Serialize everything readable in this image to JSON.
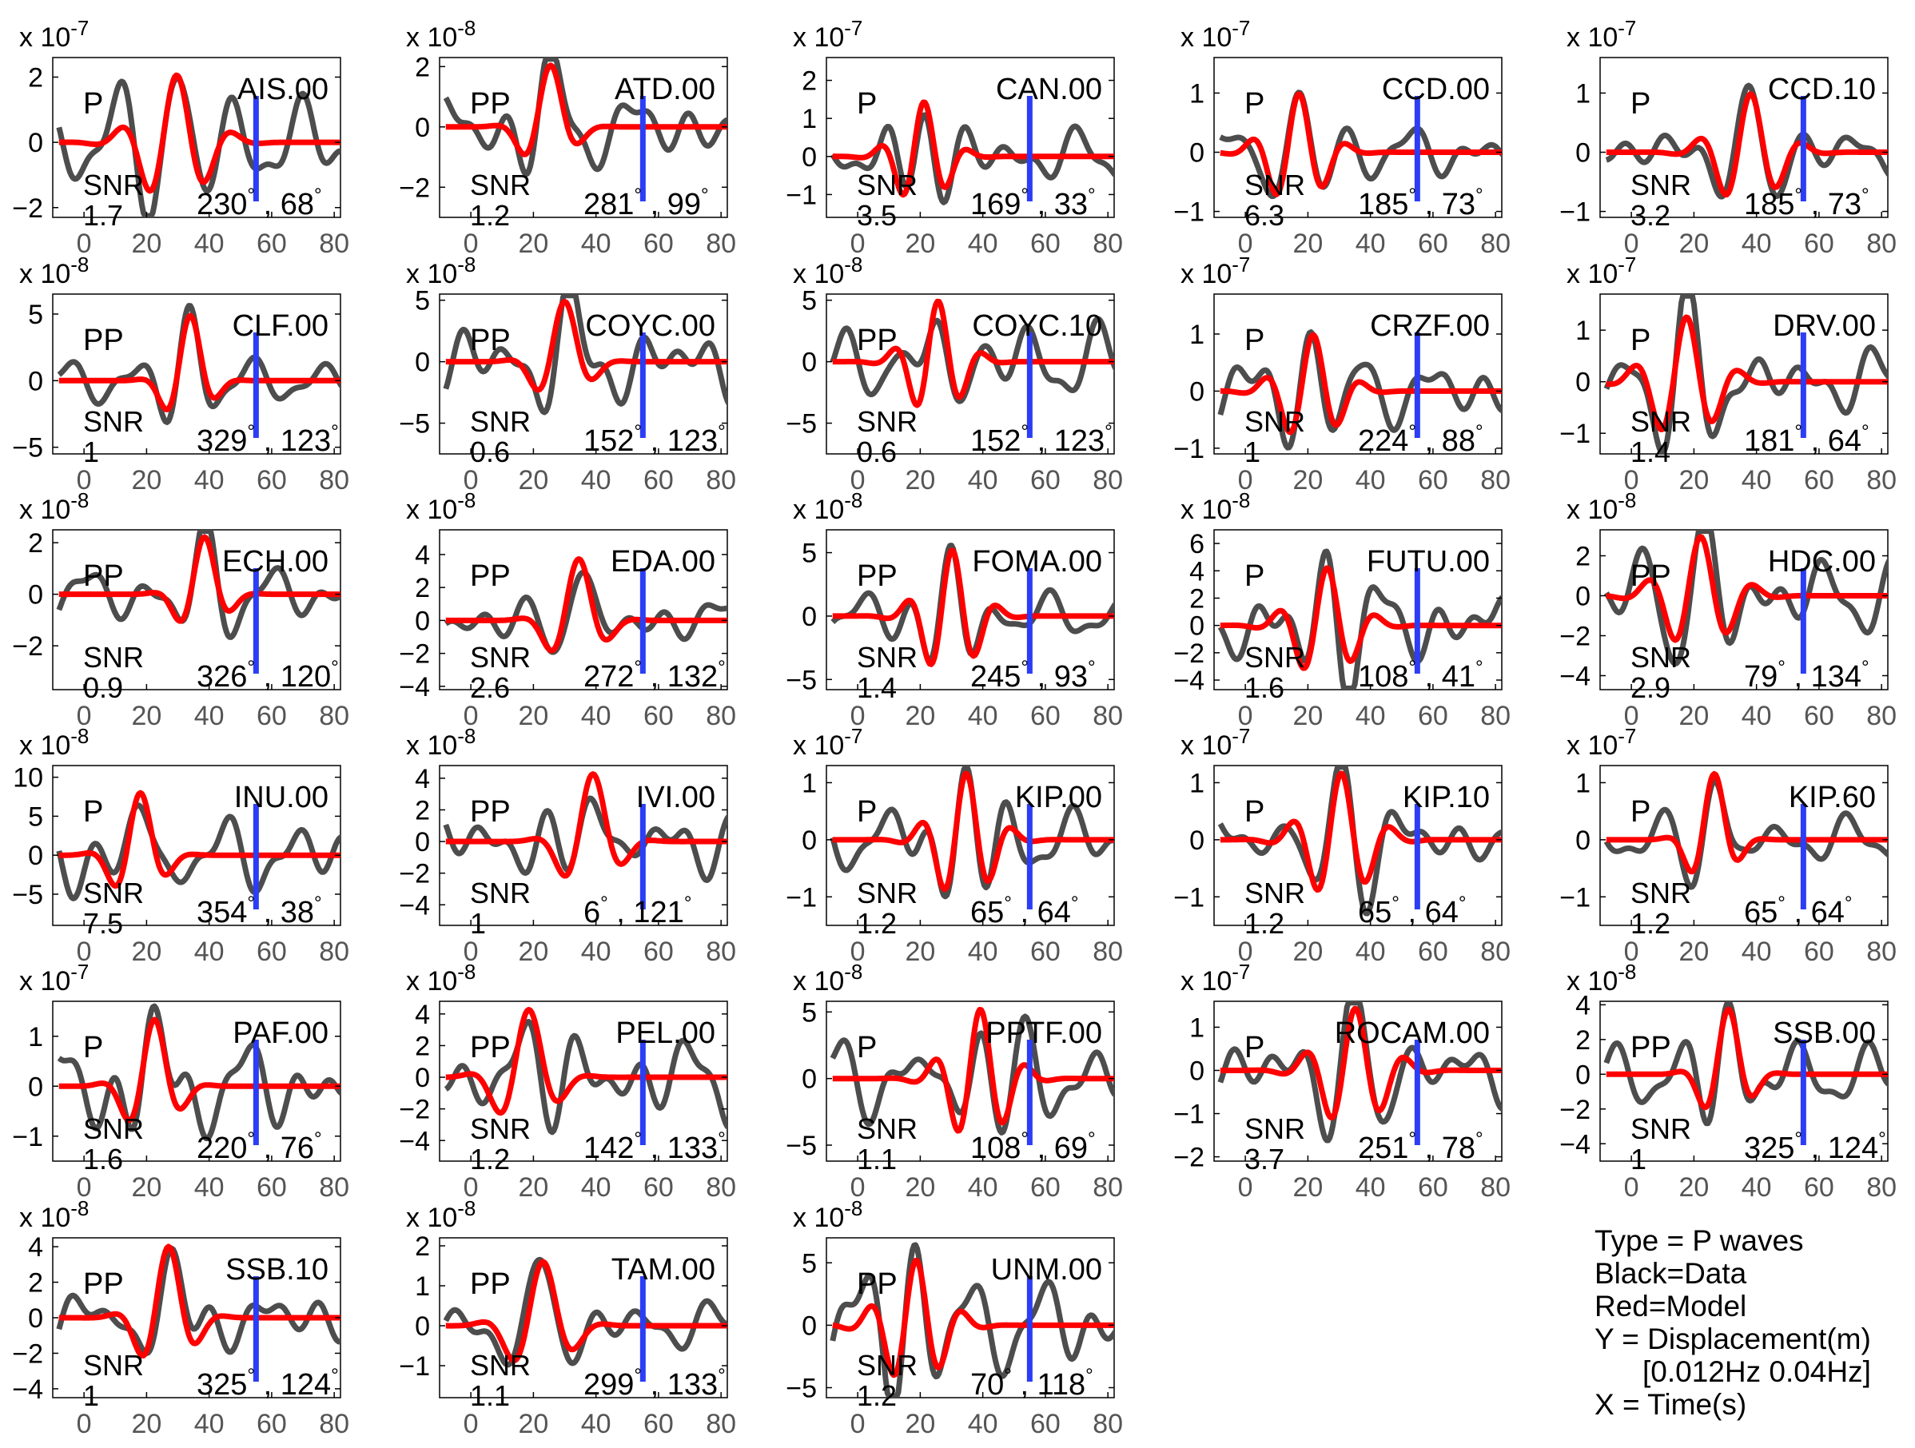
{
  "chart_data": {
    "type": "line",
    "xlim": [
      -10,
      82
    ],
    "xticks": [
      0,
      20,
      40,
      60,
      80
    ],
    "marker_time": 55,
    "series_names": [
      "Data",
      "Model"
    ],
    "colors": {
      "data": "#4d4d4d",
      "model": "#ff0000",
      "marker": "#2b3df5"
    },
    "panels": [
      {
        "station": "AIS.00",
        "phase": "P",
        "snr": "1.7",
        "azimuth": "230",
        "distance": "68",
        "exponent": "-7",
        "ylim": [
          -2.3,
          2.6
        ],
        "yticks": [
          -2,
          0,
          2
        ],
        "seed": 1
      },
      {
        "station": "ATD.00",
        "phase": "PP",
        "snr": "1.2",
        "azimuth": "281",
        "distance": "99",
        "exponent": "-8",
        "ylim": [
          -3,
          2.3
        ],
        "yticks": [
          -2,
          0,
          2
        ],
        "seed": 2
      },
      {
        "station": "CAN.00",
        "phase": "P",
        "snr": "3.5",
        "azimuth": "169",
        "distance": "33",
        "exponent": "-7",
        "ylim": [
          -1.6,
          2.6
        ],
        "yticks": [
          -1,
          0,
          1,
          2
        ],
        "seed": 3
      },
      {
        "station": "CCD.00",
        "phase": "P",
        "snr": "6.3",
        "azimuth": "185",
        "distance": "73",
        "exponent": "-7",
        "ylim": [
          -1.1,
          1.6
        ],
        "yticks": [
          -1,
          0,
          1
        ],
        "seed": 4
      },
      {
        "station": "CCD.10",
        "phase": "P",
        "snr": "3.2",
        "azimuth": "185",
        "distance": "73",
        "exponent": "-7",
        "ylim": [
          -1.1,
          1.6
        ],
        "yticks": [
          -1,
          0,
          1
        ],
        "seed": 5
      },
      {
        "station": "CLF.00",
        "phase": "PP",
        "snr": "1",
        "azimuth": "329",
        "distance": "123",
        "exponent": "-8",
        "ylim": [
          -5.5,
          6.5
        ],
        "yticks": [
          -5,
          0,
          5
        ],
        "seed": 6
      },
      {
        "station": "COYC.00",
        "phase": "PP",
        "snr": "0.6",
        "azimuth": "152",
        "distance": "123",
        "exponent": "-8",
        "ylim": [
          -7.5,
          5.5
        ],
        "yticks": [
          -5,
          0,
          5
        ],
        "seed": 7
      },
      {
        "station": "COYC.10",
        "phase": "PP",
        "snr": "0.6",
        "azimuth": "152",
        "distance": "123",
        "exponent": "-8",
        "ylim": [
          -7.5,
          5.5
        ],
        "yticks": [
          -5,
          0,
          5
        ],
        "seed": 8
      },
      {
        "station": "CRZF.00",
        "phase": "P",
        "snr": "1",
        "azimuth": "224",
        "distance": "88",
        "exponent": "-7",
        "ylim": [
          -1.1,
          1.7
        ],
        "yticks": [
          -1,
          0,
          1
        ],
        "seed": 9
      },
      {
        "station": "DRV.00",
        "phase": "P",
        "snr": "1.4",
        "azimuth": "181",
        "distance": "64",
        "exponent": "-7",
        "ylim": [
          -1.4,
          1.7
        ],
        "yticks": [
          -1,
          0,
          1
        ],
        "seed": 10
      },
      {
        "station": "ECH.00",
        "phase": "PP",
        "snr": "0.9",
        "azimuth": "326",
        "distance": "120",
        "exponent": "-8",
        "ylim": [
          -3.7,
          2.5
        ],
        "yticks": [
          -2,
          0,
          2
        ],
        "seed": 11
      },
      {
        "station": "EDA.00",
        "phase": "PP",
        "snr": "2.6",
        "azimuth": "272",
        "distance": "132",
        "exponent": "-8",
        "ylim": [
          -4.2,
          5.5
        ],
        "yticks": [
          -4,
          -2,
          0,
          2,
          4
        ],
        "seed": 12
      },
      {
        "station": "FOMA.00",
        "phase": "PP",
        "snr": "1.4",
        "azimuth": "245",
        "distance": "93",
        "exponent": "-8",
        "ylim": [
          -5.8,
          6.8
        ],
        "yticks": [
          -5,
          0,
          5
        ],
        "seed": 13
      },
      {
        "station": "FUTU.00",
        "phase": "P",
        "snr": "1.6",
        "azimuth": "108",
        "distance": "41",
        "exponent": "-8",
        "ylim": [
          -4.7,
          7
        ],
        "yticks": [
          -4,
          -2,
          0,
          2,
          4,
          6
        ],
        "seed": 14
      },
      {
        "station": "HDC.00",
        "phase": "PP",
        "snr": "2.9",
        "azimuth": "79",
        "distance": "134",
        "exponent": "-8",
        "ylim": [
          -4.7,
          3.3
        ],
        "yticks": [
          -4,
          -2,
          0,
          2
        ],
        "seed": 15
      },
      {
        "station": "INU.00",
        "phase": "P",
        "snr": "7.5",
        "azimuth": "354",
        "distance": "38",
        "exponent": "-8",
        "ylim": [
          -9,
          11.5
        ],
        "yticks": [
          -5,
          0,
          5,
          10
        ],
        "seed": 16
      },
      {
        "station": "IVI.00",
        "phase": "PP",
        "snr": "1",
        "azimuth": "6",
        "distance": "121",
        "exponent": "-8",
        "ylim": [
          -5.3,
          4.8
        ],
        "yticks": [
          -4,
          -2,
          0,
          2,
          4
        ],
        "seed": 17
      },
      {
        "station": "KIP.00",
        "phase": "P",
        "snr": "1.2",
        "azimuth": "65",
        "distance": "64",
        "exponent": "-7",
        "ylim": [
          -1.5,
          1.3
        ],
        "yticks": [
          -1,
          0,
          1
        ],
        "seed": 18
      },
      {
        "station": "KIP.10",
        "phase": "P",
        "snr": "1.2",
        "azimuth": "65",
        "distance": "64",
        "exponent": "-7",
        "ylim": [
          -1.5,
          1.3
        ],
        "yticks": [
          -1,
          0,
          1
        ],
        "seed": 19
      },
      {
        "station": "KIP.60",
        "phase": "P",
        "snr": "1.2",
        "azimuth": "65",
        "distance": "64",
        "exponent": "-7",
        "ylim": [
          -1.5,
          1.3
        ],
        "yticks": [
          -1,
          0,
          1
        ],
        "seed": 20
      },
      {
        "station": "PAF.00",
        "phase": "P",
        "snr": "1.6",
        "azimuth": "220",
        "distance": "76",
        "exponent": "-7",
        "ylim": [
          -1.5,
          1.7
        ],
        "yticks": [
          -1,
          0,
          1
        ],
        "seed": 21
      },
      {
        "station": "PEL.00",
        "phase": "PP",
        "snr": "1.2",
        "azimuth": "142",
        "distance": "133",
        "exponent": "-8",
        "ylim": [
          -5.3,
          4.8
        ],
        "yticks": [
          -4,
          -2,
          0,
          2,
          4
        ],
        "seed": 22
      },
      {
        "station": "PPTF.00",
        "phase": "P",
        "snr": "1.1",
        "azimuth": "108",
        "distance": "69",
        "exponent": "-8",
        "ylim": [
          -6.2,
          5.8
        ],
        "yticks": [
          -5,
          0,
          5
        ],
        "seed": 23
      },
      {
        "station": "ROCAM.00",
        "phase": "P",
        "snr": "3.7",
        "azimuth": "251",
        "distance": "78",
        "exponent": "-7",
        "ylim": [
          -2.1,
          1.6
        ],
        "yticks": [
          -2,
          -1,
          0,
          1
        ],
        "seed": 24
      },
      {
        "station": "SSB.00",
        "phase": "PP",
        "snr": "1",
        "azimuth": "325",
        "distance": "124",
        "exponent": "-8",
        "ylim": [
          -5,
          4.2
        ],
        "yticks": [
          -4,
          -2,
          0,
          2,
          4
        ],
        "seed": 25
      },
      {
        "station": "SSB.10",
        "phase": "PP",
        "snr": "1",
        "azimuth": "325",
        "distance": "124",
        "exponent": "-8",
        "ylim": [
          -4.5,
          4.5
        ],
        "yticks": [
          -4,
          -2,
          0,
          2,
          4
        ],
        "seed": 26
      },
      {
        "station": "TAM.00",
        "phase": "PP",
        "snr": "1.1",
        "azimuth": "299",
        "distance": "133",
        "exponent": "-8",
        "ylim": [
          -1.8,
          2.2
        ],
        "yticks": [
          -1,
          0,
          1,
          2
        ],
        "seed": 27
      },
      {
        "station": "UNM.00",
        "phase": "PP",
        "snr": "1.2",
        "azimuth": "70",
        "distance": "118",
        "exponent": "-8",
        "ylim": [
          -5.8,
          7
        ],
        "yticks": [
          -5,
          0,
          5
        ],
        "seed": 28
      }
    ]
  },
  "legend": {
    "line1": "Type = P waves",
    "line2": "Black=Data",
    "line3": "Red=Model",
    "line4": "Y = Displacement(m)",
    "line5": "[0.012Hz 0.04Hz]",
    "line6": "X = Time(s)"
  },
  "labels": {
    "snr": "SNR",
    "exp_prefix": "x 10",
    "degree": "°"
  }
}
